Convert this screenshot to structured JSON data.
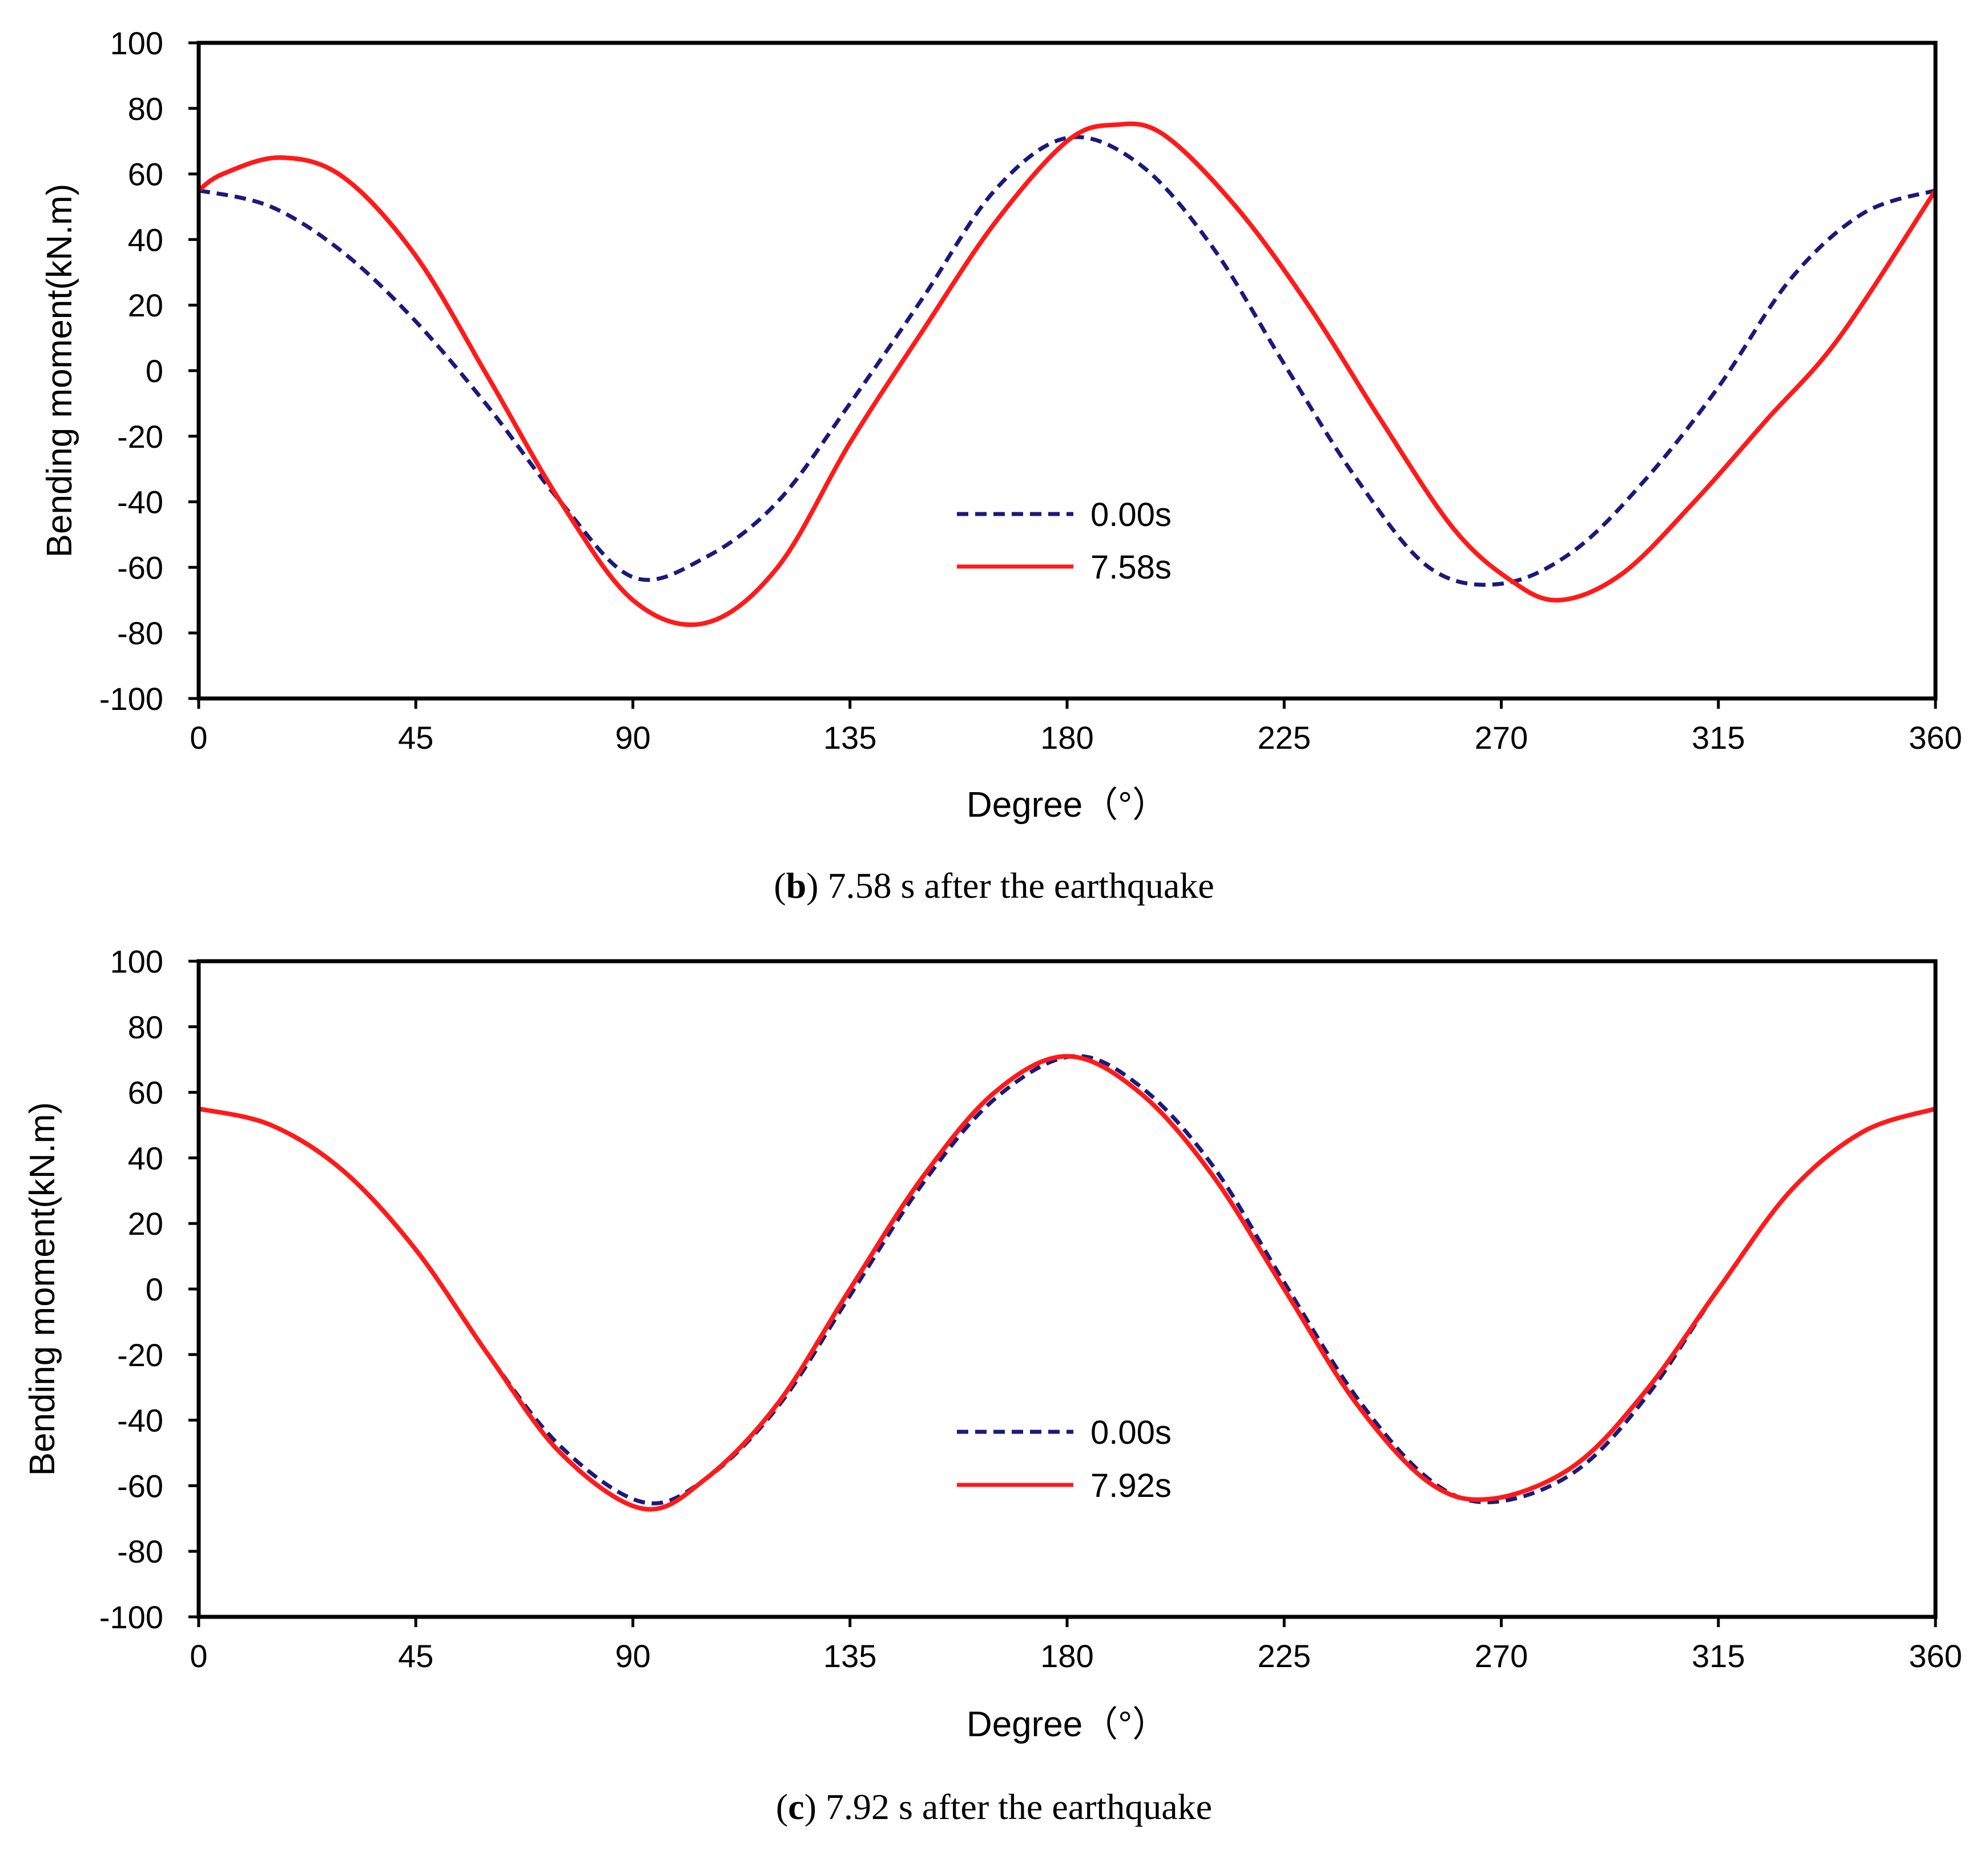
{
  "chart_data": [
    {
      "type": "line",
      "panel": "b",
      "caption": {
        "letter": "b",
        "text": " 7.58 s after the earthquake"
      },
      "title": "",
      "xlabel": "Degree（°）",
      "ylabel": "Bending moment(kN.m)",
      "xlim": [
        0,
        360
      ],
      "ylim": [
        -100,
        100
      ],
      "xticks": [
        "0",
        "45",
        "90",
        "135",
        "180",
        "225",
        "270",
        "315",
        "360"
      ],
      "yticks": [
        "100",
        "80",
        "60",
        "40",
        "20",
        "0",
        "-20",
        "-40",
        "-60",
        "-80",
        "-100"
      ],
      "grid": false,
      "legend_position": "center-right",
      "series": [
        {
          "name": "0.00s",
          "color": "#1a1a7a",
          "style": "dashed",
          "x": [
            0,
            15,
            30,
            45,
            60,
            75,
            90,
            105,
            120,
            135,
            150,
            165,
            180,
            195,
            210,
            225,
            240,
            255,
            270,
            285,
            300,
            315,
            330,
            345,
            360
          ],
          "y": [
            55,
            50,
            36,
            15,
            -11,
            -40,
            -63,
            -57,
            -40,
            -10,
            22,
            55,
            71,
            63,
            38,
            2,
            -33,
            -60,
            -65,
            -55,
            -33,
            -5,
            28,
            48,
            55
          ]
        },
        {
          "name": "7.58s",
          "color": "#ff1a1a",
          "style": "solid",
          "x": [
            0,
            5,
            17,
            30,
            45,
            60,
            75,
            90,
            105,
            120,
            135,
            150,
            165,
            180,
            190,
            200,
            215,
            230,
            245,
            260,
            272,
            282,
            295,
            310,
            325,
            340,
            360
          ],
          "y": [
            55,
            60,
            65,
            59,
            35,
            -2,
            -40,
            -70,
            -77,
            -60,
            -22,
            12,
            45,
            70,
            75,
            72,
            50,
            20,
            -15,
            -48,
            -64,
            -70,
            -62,
            -40,
            -15,
            10,
            55
          ]
        }
      ]
    },
    {
      "type": "line",
      "panel": "c",
      "caption": {
        "letter": "c",
        "text": " 7.92 s after the earthquake"
      },
      "title": "",
      "xlabel": "Degree（°）",
      "ylabel": "Bending moment(kN.m)",
      "xlim": [
        0,
        360
      ],
      "ylim": [
        -100,
        100
      ],
      "xticks": [
        "0",
        "45",
        "90",
        "135",
        "180",
        "225",
        "270",
        "315",
        "360"
      ],
      "yticks": [
        "100",
        "80",
        "60",
        "40",
        "20",
        "0",
        "-20",
        "-40",
        "-60",
        "-80",
        "-100"
      ],
      "grid": false,
      "legend_position": "center-right",
      "series": [
        {
          "name": "0.00s",
          "color": "#1a1a7a",
          "style": "dashed",
          "x": [
            0,
            15,
            30,
            45,
            60,
            75,
            92,
            105,
            120,
            135,
            150,
            165,
            181,
            195,
            210,
            225,
            240,
            255,
            268,
            285,
            300,
            315,
            330,
            345,
            360
          ],
          "y": [
            55,
            50,
            36,
            12,
            -20,
            -48,
            -65,
            -58,
            -36,
            -2,
            32,
            58,
            71,
            62,
            38,
            2,
            -33,
            -58,
            -65,
            -56,
            -33,
            0,
            30,
            48,
            55
          ]
        },
        {
          "name": "7.92s",
          "color": "#ff1a1a",
          "style": "solid",
          "x": [
            0,
            15,
            30,
            45,
            60,
            75,
            92,
            105,
            120,
            135,
            150,
            165,
            180,
            195,
            210,
            225,
            240,
            255,
            268,
            285,
            300,
            315,
            330,
            345,
            360
          ],
          "y": [
            55,
            50,
            36,
            12,
            -20,
            -50,
            -67,
            -58,
            -35,
            0,
            34,
            60,
            71,
            60,
            35,
            0,
            -35,
            -59,
            -64,
            -54,
            -31,
            0,
            30,
            48,
            55
          ]
        }
      ]
    }
  ]
}
